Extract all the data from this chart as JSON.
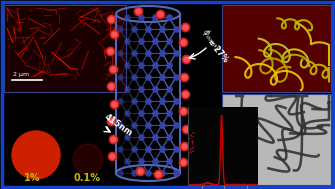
{
  "bg_color": "#000000",
  "border_color": "#1144cc",
  "nanotube_bond_color": "#5566bb",
  "eu_color_outer": "#cc2222",
  "eu_color_inner": "#ff5555",
  "c_atom_color": "#3344aa",
  "red_circle1_color": "#cc2000",
  "red_circle2_color": "#330000",
  "panel_tl_bg": "#1a0000",
  "panel_tr_bg": "#550000",
  "panel_br_bg": "#b8b8b8",
  "scale_bar_text": "2 μm",
  "conc1_text": "1%",
  "conc2_text": "0.1%",
  "excitation_nm": "415nm",
  "phi_text": "ϕoverall = 27%",
  "spectrum_color": "#cc0000",
  "size": [
    335,
    189
  ]
}
